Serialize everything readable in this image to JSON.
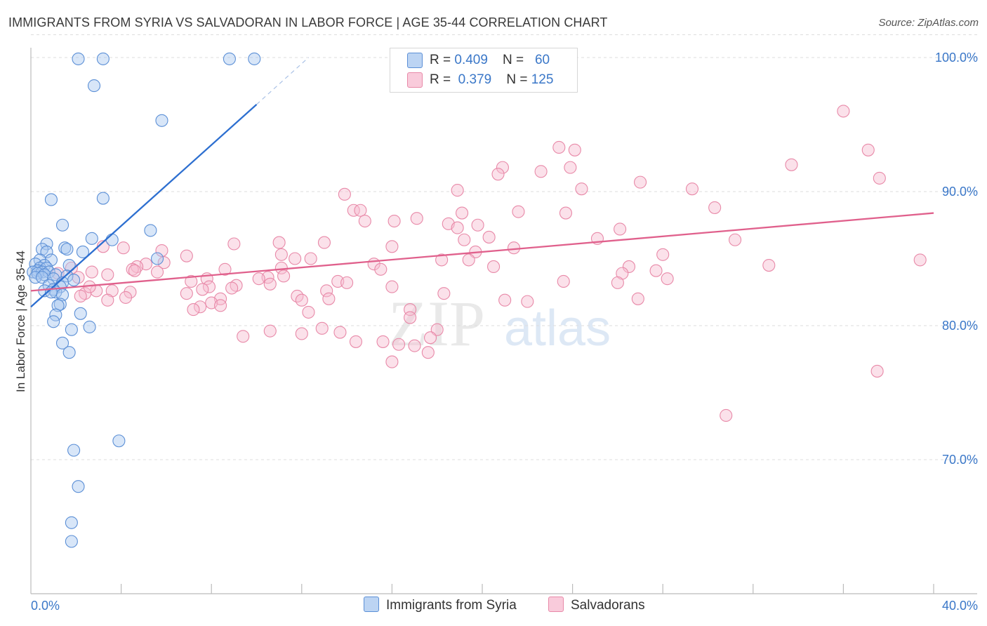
{
  "title": "IMMIGRANTS FROM SYRIA VS SALVADORAN IN LABOR FORCE | AGE 35-44 CORRELATION CHART",
  "source": "Source: ZipAtlas.com",
  "watermark": {
    "zip": "ZIP",
    "atlas": "atlas"
  },
  "colors": {
    "blue_fill": "#a9c8ef",
    "blue_stroke": "#5b8fd6",
    "blue_line": "#2d6fd0",
    "pink_fill": "#f6bcd0",
    "pink_stroke": "#e889a8",
    "pink_line": "#e0608c",
    "axis_text": "#3a77c8",
    "grid": "#dddddd"
  },
  "legend": {
    "rows": [
      {
        "r_label": "R = ",
        "r_value": "0.409",
        "n_label": "N = ",
        "n_value": "60"
      },
      {
        "r_label": "R = ",
        "r_value": "0.379",
        "n_label": "N = ",
        "n_value": "125"
      }
    ]
  },
  "chart_data": {
    "type": "scatter",
    "title": "IMMIGRANTS FROM SYRIA VS SALVADORAN IN LABOR FORCE | AGE 35-44 CORRELATION CHART",
    "xlabel": "",
    "ylabel": "In Labor Force | Age 35-44",
    "xlim": [
      0,
      40
    ],
    "ylim": [
      60,
      102
    ],
    "x_tick_labels": [
      "0.0%",
      "40.0%"
    ],
    "y_ticks": [
      70,
      80,
      90,
      100
    ],
    "y_tick_labels": [
      "70.0%",
      "80.0%",
      "90.0%",
      "100.0%"
    ],
    "grid": true,
    "legend_position": "top-center",
    "series": [
      {
        "name": "Immigrants from Syria",
        "color": "#a9c8ef",
        "trend": {
          "x": [
            0,
            10.0
          ],
          "y": [
            81.4,
            96.5
          ],
          "dashed_to": [
            12.3,
            100.0
          ]
        },
        "points": [
          [
            2.1,
            99.9
          ],
          [
            3.2,
            99.9
          ],
          [
            8.8,
            99.9
          ],
          [
            9.9,
            99.9
          ],
          [
            2.8,
            97.9
          ],
          [
            5.8,
            95.3
          ],
          [
            0.9,
            89.4
          ],
          [
            3.2,
            89.5
          ],
          [
            1.4,
            87.5
          ],
          [
            5.3,
            87.1
          ],
          [
            2.7,
            86.5
          ],
          [
            3.6,
            86.4
          ],
          [
            0.7,
            86.1
          ],
          [
            0.5,
            85.7
          ],
          [
            1.5,
            85.8
          ],
          [
            1.6,
            85.7
          ],
          [
            0.7,
            85.5
          ],
          [
            2.3,
            85.5
          ],
          [
            5.6,
            85.0
          ],
          [
            0.4,
            84.9
          ],
          [
            0.9,
            84.9
          ],
          [
            0.2,
            84.6
          ],
          [
            0.6,
            84.5
          ],
          [
            1.7,
            84.5
          ],
          [
            0.4,
            84.3
          ],
          [
            0.7,
            84.3
          ],
          [
            0.3,
            84.1
          ],
          [
            0.1,
            84.0
          ],
          [
            0.5,
            84.0
          ],
          [
            0.8,
            84.0
          ],
          [
            0.3,
            83.9
          ],
          [
            0.6,
            83.8
          ],
          [
            1.1,
            83.8
          ],
          [
            1.6,
            83.7
          ],
          [
            0.2,
            83.6
          ],
          [
            0.5,
            83.6
          ],
          [
            1.0,
            83.5
          ],
          [
            1.9,
            83.4
          ],
          [
            1.4,
            83.2
          ],
          [
            0.8,
            83.0
          ],
          [
            1.3,
            82.9
          ],
          [
            1.0,
            82.7
          ],
          [
            0.6,
            82.6
          ],
          [
            1.1,
            82.5
          ],
          [
            0.9,
            82.5
          ],
          [
            1.4,
            82.3
          ],
          [
            1.3,
            81.6
          ],
          [
            1.2,
            81.5
          ],
          [
            2.2,
            80.9
          ],
          [
            1.1,
            80.8
          ],
          [
            1.0,
            80.3
          ],
          [
            1.8,
            79.7
          ],
          [
            2.6,
            79.9
          ],
          [
            1.4,
            78.7
          ],
          [
            1.7,
            78.0
          ],
          [
            3.9,
            71.4
          ],
          [
            1.9,
            70.7
          ],
          [
            2.1,
            68.0
          ],
          [
            1.8,
            65.3
          ],
          [
            1.8,
            63.9
          ]
        ]
      },
      {
        "name": "Salvadorans",
        "color": "#f6bcd0",
        "trend": {
          "x": [
            0,
            40
          ],
          "y": [
            82.6,
            88.4
          ]
        },
        "points": [
          [
            36.0,
            96.0
          ],
          [
            37.1,
            93.1
          ],
          [
            23.4,
            93.3
          ],
          [
            24.1,
            93.1
          ],
          [
            33.7,
            92.0
          ],
          [
            37.6,
            91.0
          ],
          [
            20.9,
            91.8
          ],
          [
            20.7,
            91.3
          ],
          [
            22.6,
            91.5
          ],
          [
            23.9,
            91.8
          ],
          [
            27.0,
            90.7
          ],
          [
            29.3,
            90.2
          ],
          [
            24.4,
            90.2
          ],
          [
            18.9,
            90.1
          ],
          [
            13.9,
            89.8
          ],
          [
            30.3,
            88.8
          ],
          [
            14.3,
            88.6
          ],
          [
            14.6,
            88.6
          ],
          [
            19.1,
            88.4
          ],
          [
            23.7,
            88.4
          ],
          [
            21.6,
            88.5
          ],
          [
            17.1,
            88.0
          ],
          [
            14.8,
            87.8
          ],
          [
            16.1,
            87.8
          ],
          [
            18.5,
            87.6
          ],
          [
            19.8,
            87.5
          ],
          [
            18.9,
            87.3
          ],
          [
            26.1,
            87.2
          ],
          [
            25.1,
            86.5
          ],
          [
            19.2,
            86.4
          ],
          [
            20.3,
            86.6
          ],
          [
            31.2,
            86.4
          ],
          [
            13.0,
            86.2
          ],
          [
            9.0,
            86.1
          ],
          [
            11.0,
            86.2
          ],
          [
            16.0,
            85.9
          ],
          [
            21.4,
            85.8
          ],
          [
            4.1,
            85.8
          ],
          [
            19.7,
            85.5
          ],
          [
            5.8,
            85.6
          ],
          [
            28.0,
            85.3
          ],
          [
            11.1,
            85.3
          ],
          [
            6.9,
            85.2
          ],
          [
            11.7,
            85.0
          ],
          [
            12.4,
            85.0
          ],
          [
            39.4,
            84.9
          ],
          [
            19.4,
            84.9
          ],
          [
            18.2,
            84.9
          ],
          [
            5.9,
            84.7
          ],
          [
            5.1,
            84.6
          ],
          [
            15.2,
            84.6
          ],
          [
            32.7,
            84.5
          ],
          [
            4.7,
            84.4
          ],
          [
            26.5,
            84.4
          ],
          [
            20.5,
            84.4
          ],
          [
            11.1,
            84.3
          ],
          [
            4.5,
            84.2
          ],
          [
            8.6,
            84.2
          ],
          [
            15.5,
            84.2
          ],
          [
            27.7,
            84.1
          ],
          [
            2.7,
            84.0
          ],
          [
            5.6,
            84.0
          ],
          [
            26.2,
            83.9
          ],
          [
            3.4,
            83.8
          ],
          [
            11.2,
            83.7
          ],
          [
            10.5,
            83.6
          ],
          [
            10.1,
            83.5
          ],
          [
            2.1,
            83.6
          ],
          [
            7.8,
            83.5
          ],
          [
            28.2,
            83.5
          ],
          [
            23.6,
            83.3
          ],
          [
            7.1,
            83.3
          ],
          [
            13.6,
            83.3
          ],
          [
            14.0,
            83.2
          ],
          [
            26.0,
            83.2
          ],
          [
            10.6,
            83.1
          ],
          [
            7.9,
            82.9
          ],
          [
            9.1,
            83.0
          ],
          [
            16.0,
            82.9
          ],
          [
            7.6,
            82.7
          ],
          [
            8.9,
            82.8
          ],
          [
            13.1,
            82.6
          ],
          [
            2.9,
            82.6
          ],
          [
            3.6,
            82.6
          ],
          [
            4.4,
            82.5
          ],
          [
            2.4,
            82.4
          ],
          [
            2.2,
            82.2
          ],
          [
            6.9,
            82.4
          ],
          [
            4.2,
            82.1
          ],
          [
            18.3,
            82.4
          ],
          [
            11.8,
            82.2
          ],
          [
            26.9,
            82.0
          ],
          [
            13.2,
            82.0
          ],
          [
            3.4,
            81.9
          ],
          [
            8.4,
            82.0
          ],
          [
            8.0,
            81.7
          ],
          [
            12.0,
            81.9
          ],
          [
            21.0,
            81.9
          ],
          [
            22.0,
            81.8
          ],
          [
            7.5,
            81.4
          ],
          [
            12.3,
            81.0
          ],
          [
            8.4,
            81.5
          ],
          [
            16.8,
            81.2
          ],
          [
            16.8,
            80.6
          ],
          [
            12.9,
            79.8
          ],
          [
            10.6,
            79.6
          ],
          [
            18.0,
            79.7
          ],
          [
            13.7,
            79.5
          ],
          [
            12.0,
            79.4
          ],
          [
            17.7,
            79.1
          ],
          [
            14.4,
            78.8
          ],
          [
            16.3,
            78.6
          ],
          [
            15.6,
            78.8
          ],
          [
            17.0,
            78.5
          ],
          [
            17.6,
            78.0
          ],
          [
            16.0,
            77.3
          ],
          [
            30.8,
            73.3
          ],
          [
            37.5,
            76.6
          ],
          [
            9.4,
            79.2
          ],
          [
            7.2,
            81.2
          ],
          [
            4.6,
            84.1
          ],
          [
            3.2,
            85.9
          ],
          [
            1.8,
            84.3
          ],
          [
            1.2,
            83.9
          ],
          [
            2.6,
            82.9
          ]
        ]
      }
    ]
  },
  "bottom_legend": [
    "Immigrants from Syria",
    "Salvadorans"
  ]
}
